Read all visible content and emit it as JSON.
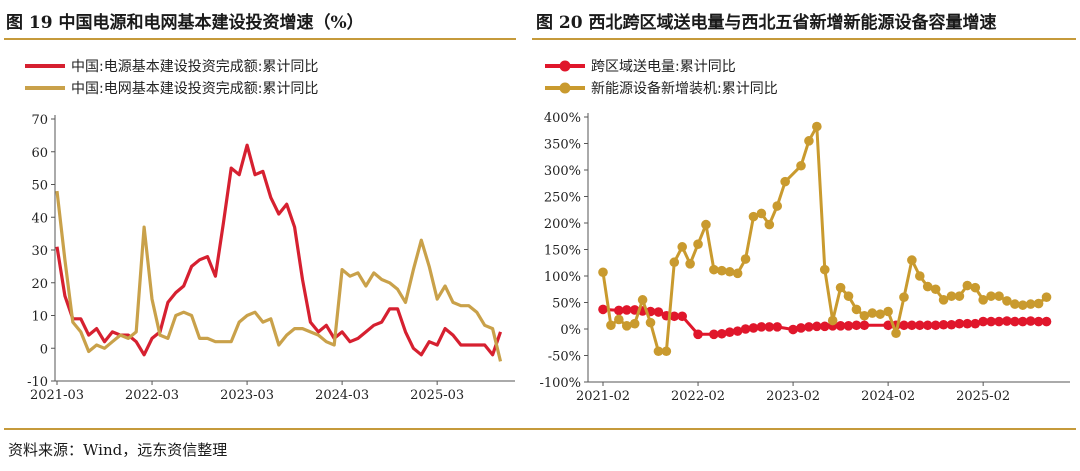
{
  "figure1": {
    "title": "图 19  中国电源和电网基本建设投资增速（%）",
    "chart_data": {
      "type": "line",
      "title": "图 19  中国电源和电网基本建设投资增速（%）",
      "ylim": [
        -10,
        70
      ],
      "yticks": [
        -10,
        0,
        10,
        20,
        30,
        40,
        50,
        60,
        70
      ],
      "x_tick_labels": [
        "2021-03",
        "2022-03",
        "2023-03",
        "2024-03",
        "2025-03"
      ],
      "x_tick_months": [
        0,
        12,
        24,
        36,
        48
      ],
      "series": [
        {
          "name": "中国:电源基本建设投资完成额:累计同比",
          "color": "#d62030",
          "months": [
            0,
            1,
            2,
            3,
            4,
            5,
            6,
            7,
            8,
            9,
            10,
            11,
            12,
            13,
            14,
            15,
            16,
            17,
            18,
            19,
            20,
            21,
            22,
            23,
            24,
            25,
            26,
            27,
            28,
            29,
            30,
            31,
            32,
            33,
            34,
            35,
            36,
            37,
            38,
            39,
            40,
            41,
            42,
            43,
            44,
            45,
            46,
            47,
            48,
            49,
            50,
            51,
            52,
            53,
            54,
            55,
            56
          ],
          "values": [
            31,
            16,
            9,
            9,
            4,
            6,
            2,
            5,
            4,
            4,
            2,
            -2,
            3,
            5,
            14,
            17,
            19,
            25,
            27,
            28,
            22,
            38,
            55,
            53,
            62,
            53,
            54,
            46,
            41,
            44,
            37,
            21,
            8,
            5,
            7,
            3,
            5,
            2,
            3,
            5,
            7,
            8,
            12,
            12,
            5,
            0,
            -2,
            2,
            1,
            6,
            4,
            1,
            1,
            1,
            1,
            -2,
            5
          ]
        },
        {
          "name": "中国:电网基本建设投资完成额:累计同比",
          "color": "#c9a14a",
          "months": [
            0,
            1,
            2,
            3,
            4,
            5,
            6,
            7,
            8,
            9,
            10,
            11,
            12,
            13,
            14,
            15,
            16,
            17,
            18,
            19,
            20,
            21,
            22,
            23,
            24,
            25,
            26,
            27,
            28,
            29,
            30,
            31,
            32,
            33,
            34,
            35,
            36,
            37,
            38,
            39,
            40,
            41,
            42,
            43,
            44,
            45,
            46,
            47,
            48,
            49,
            50,
            51,
            52,
            53,
            54,
            55,
            56
          ],
          "values": [
            48,
            27,
            8,
            5,
            -1,
            1,
            0,
            2,
            4,
            3,
            5,
            37,
            15,
            4,
            3,
            10,
            11,
            10,
            3,
            3,
            2,
            2,
            2,
            8,
            10,
            11,
            8,
            9,
            1,
            4,
            6,
            6,
            5,
            4,
            2,
            1,
            24,
            22,
            23,
            19,
            23,
            21,
            20,
            18,
            14,
            24,
            33,
            25,
            15,
            19,
            14,
            13,
            13,
            11,
            7,
            6,
            -4
          ]
        }
      ]
    }
  },
  "figure2": {
    "title": "图 20  西北跨区域送电量与西北五省新增新能源设备容量增速",
    "chart_data": {
      "type": "line",
      "title": "图 20  西北跨区域送电量与西北五省新增新能源设备容量增速",
      "ylim": [
        -100,
        400
      ],
      "yticks": [
        -100,
        -50,
        0,
        50,
        100,
        150,
        200,
        250,
        300,
        350,
        400
      ],
      "ytick_labels": [
        "-100%",
        "-50%",
        "0%",
        "50%",
        "100%",
        "150%",
        "200%",
        "250%",
        "300%",
        "350%",
        "400%"
      ],
      "x_tick_labels": [
        "2021-02",
        "2022-02",
        "2023-02",
        "2024-02",
        "2025-02"
      ],
      "x_tick_months": [
        0,
        12,
        24,
        36,
        48
      ],
      "series": [
        {
          "name": "跨区域送电量:累计同比",
          "color": "#e0162b",
          "marker": "circle",
          "months": [
            0,
            2,
            3,
            4,
            5,
            6,
            7,
            8,
            9,
            10,
            12,
            14,
            15,
            16,
            17,
            18,
            19,
            20,
            21,
            22,
            24,
            25,
            26,
            27,
            28,
            29,
            30,
            31,
            32,
            33,
            36,
            37,
            38,
            39,
            40,
            41,
            42,
            43,
            44,
            45,
            46,
            47,
            48,
            49,
            50,
            51,
            52,
            53,
            54,
            55,
            56
          ],
          "values": [
            37,
            35,
            36,
            36,
            34,
            33,
            32,
            25,
            24,
            24,
            -10,
            -10,
            -9,
            -6,
            -4,
            0,
            2,
            4,
            4,
            4,
            -1,
            2,
            4,
            5,
            5,
            6,
            6,
            6,
            7,
            7,
            7,
            7,
            7,
            7,
            7,
            7,
            7,
            8,
            8,
            10,
            10,
            10,
            14,
            14,
            14,
            15,
            14,
            14,
            15,
            14,
            14
          ]
        },
        {
          "name": "新能源设备新增装机:累计同比",
          "color": "#c99a2e",
          "marker": "circle",
          "months": [
            0,
            1,
            2,
            3,
            4,
            5,
            6,
            7,
            8,
            9,
            10,
            11,
            12,
            13,
            14,
            15,
            16,
            17,
            18,
            19,
            20,
            21,
            22,
            23,
            25,
            26,
            27,
            28,
            29,
            30,
            31,
            32,
            33,
            34,
            35,
            36,
            37,
            38,
            39,
            40,
            41,
            42,
            43,
            44,
            45,
            46,
            47,
            48,
            49,
            50,
            51,
            52,
            53,
            54,
            55,
            56
          ],
          "values": [
            107,
            7,
            18,
            6,
            10,
            55,
            12,
            -42,
            -42,
            126,
            155,
            123,
            160,
            197,
            112,
            110,
            108,
            105,
            132,
            212,
            218,
            197,
            232,
            278,
            308,
            355,
            382,
            112,
            16,
            78,
            62,
            37,
            25,
            30,
            28,
            33,
            -8,
            60,
            130,
            100,
            80,
            75,
            55,
            62,
            62,
            82,
            78,
            55,
            62,
            62,
            53,
            47,
            45,
            47,
            48,
            60
          ]
        }
      ]
    }
  },
  "source_note": "资料来源：Wind，远东资信整理"
}
